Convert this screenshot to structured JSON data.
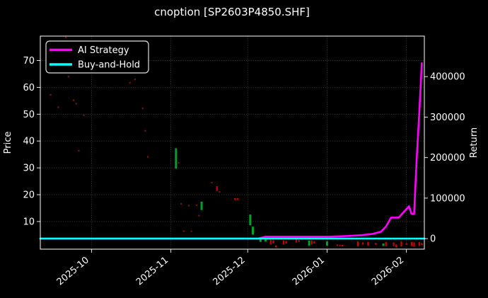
{
  "title": "cnoption [SP2603P4850.SHF]",
  "axes": {
    "left_label": "Price",
    "right_label": "Return"
  },
  "legend": {
    "position": "upper left",
    "items": [
      {
        "label": "AI Strategy",
        "color": "#ff00ff"
      },
      {
        "label": "Buy-and-Hold",
        "color": "#00ffff"
      }
    ]
  },
  "colors": {
    "background": "#000000",
    "frame": "#ffffff",
    "text": "#ffffff",
    "grid": "#4a4a4a",
    "candle_up": "#00a328",
    "candle_down": "#d40000",
    "candle_down_dim": "#7c1010"
  },
  "chart_data": {
    "type": "line",
    "subtype": "line+candlestick",
    "title": "cnoption [SP2603P4850.SHF]",
    "xlabel": "",
    "ylabel_left": "Price",
    "ylabel_right": "Return",
    "grid": true,
    "legend_position": "upper left",
    "x_range": [
      "2025-09-11",
      "2026-02-08"
    ],
    "x_ticks": [
      {
        "label": "2025-10",
        "date": "2025-10-01"
      },
      {
        "label": "2025-11",
        "date": "2025-11-01"
      },
      {
        "label": "2025-12",
        "date": "2025-12-01"
      },
      {
        "label": "2026-01",
        "date": "2026-01-01"
      },
      {
        "label": "2026-02",
        "date": "2026-02-01"
      }
    ],
    "price_ylim": [
      -0.3,
      79.1
    ],
    "price_ticks": [
      10,
      20,
      30,
      40,
      50,
      60,
      70
    ],
    "return_ylim": [
      -26000,
      500000
    ],
    "return_ticks": [
      0,
      100000,
      200000,
      300000,
      400000
    ],
    "series": [
      {
        "name": "AI Strategy",
        "axis": "return",
        "color": "#ff00ff",
        "points": [
          [
            "2025-09-11",
            0
          ],
          [
            "2025-12-05",
            0
          ],
          [
            "2025-12-08",
            5000
          ],
          [
            "2026-01-02",
            5000
          ],
          [
            "2026-01-09",
            6500
          ],
          [
            "2026-01-15",
            9000
          ],
          [
            "2026-01-19",
            12000
          ],
          [
            "2026-01-22",
            17000
          ],
          [
            "2026-01-24",
            30000
          ],
          [
            "2026-01-26",
            52000
          ],
          [
            "2026-01-29",
            52000
          ],
          [
            "2026-02-01",
            73000
          ],
          [
            "2026-02-02",
            80000
          ],
          [
            "2026-02-03",
            61000
          ],
          [
            "2026-02-04",
            61000
          ],
          [
            "2026-02-05",
            195000
          ],
          [
            "2026-02-06",
            310000
          ],
          [
            "2026-02-07",
            433000
          ]
        ]
      },
      {
        "name": "Buy-and-Hold",
        "axis": "return",
        "color": "#00ffff",
        "points": [
          [
            "2025-09-11",
            0
          ],
          [
            "2026-02-08",
            0
          ]
        ]
      }
    ],
    "candles": [
      [
        "2025-09-15",
        56.9,
        57.5,
        "dd"
      ],
      [
        "2025-09-18",
        52.3,
        52.9,
        "dd"
      ],
      [
        "2025-09-21",
        78.3,
        78.9,
        "dd"
      ],
      [
        "2025-09-22",
        63.7,
        64.3,
        "dd"
      ],
      [
        "2025-09-24",
        54.9,
        55.5,
        "dd"
      ],
      [
        "2025-09-25",
        53.6,
        54.2,
        "dd"
      ],
      [
        "2025-09-26",
        36.1,
        36.7,
        "dd"
      ],
      [
        "2025-09-28",
        49.3,
        49.9,
        "dd"
      ],
      [
        "2025-09-29",
        72.5,
        73.1,
        "dd"
      ],
      [
        "2025-10-16",
        61.4,
        62.0,
        "dd"
      ],
      [
        "2025-10-18",
        62.7,
        63.3,
        "dd"
      ],
      [
        "2025-10-21",
        51.9,
        52.5,
        "dd"
      ],
      [
        "2025-10-22",
        43.5,
        44.1,
        "dd"
      ],
      [
        "2025-10-23",
        33.8,
        34.4,
        "dd"
      ],
      [
        "2025-11-03",
        29.7,
        37.3,
        "u"
      ],
      [
        "2025-11-04",
        31.6,
        32.2,
        "dd"
      ],
      [
        "2025-11-05",
        16.3,
        16.9,
        "dd"
      ],
      [
        "2025-11-06",
        6.1,
        6.7,
        "dd"
      ],
      [
        "2025-11-08",
        15.6,
        16.2,
        "dd"
      ],
      [
        "2025-11-09",
        6.1,
        6.6,
        "dd"
      ],
      [
        "2025-11-11",
        15.8,
        16.4,
        "dd"
      ],
      [
        "2025-11-12",
        11.9,
        12.5,
        "dd"
      ],
      [
        "2025-11-13",
        14.3,
        17.4,
        "u"
      ],
      [
        "2025-11-17",
        24.2,
        24.8,
        "dd"
      ],
      [
        "2025-11-19",
        21.4,
        23.2,
        "d"
      ],
      [
        "2025-11-20",
        20.7,
        21.3,
        "dd"
      ],
      [
        "2025-11-26",
        18.0,
        18.7,
        "d"
      ],
      [
        "2025-11-27",
        18.0,
        18.7,
        "d"
      ],
      [
        "2025-12-02",
        8.6,
        12.6,
        "u"
      ],
      [
        "2025-12-03",
        5.1,
        8.1,
        "u"
      ],
      [
        "2025-12-06",
        2.4,
        3.4,
        "u"
      ],
      [
        "2025-12-08",
        2.6,
        3.3,
        "u"
      ],
      [
        "2025-12-10",
        1.5,
        3.2,
        "d"
      ],
      [
        "2025-12-11",
        1.8,
        3.0,
        "d"
      ],
      [
        "2025-12-12",
        0.3,
        1.1,
        "d"
      ],
      [
        "2025-12-15",
        1.5,
        3.0,
        "d"
      ],
      [
        "2025-12-16",
        1.8,
        2.8,
        "d"
      ],
      [
        "2025-12-20",
        2.2,
        3.3,
        "d"
      ],
      [
        "2025-12-21",
        2.4,
        3.1,
        "d"
      ],
      [
        "2025-12-25",
        1.0,
        2.9,
        "u"
      ],
      [
        "2025-12-26",
        1.5,
        3.0,
        "d"
      ],
      [
        "2025-12-27",
        1.8,
        2.7,
        "d"
      ],
      [
        "2026-01-01",
        1.0,
        2.6,
        "u"
      ],
      [
        "2026-01-05",
        0.9,
        1.4,
        "d"
      ],
      [
        "2026-01-06",
        0.9,
        1.3,
        "d"
      ],
      [
        "2026-01-07",
        0.8,
        1.3,
        "d"
      ],
      [
        "2026-01-13",
        0.8,
        2.6,
        "d"
      ],
      [
        "2026-01-15",
        1.5,
        2.2,
        "d"
      ],
      [
        "2026-01-17",
        1.0,
        2.4,
        "d"
      ],
      [
        "2026-01-20",
        1.3,
        2.0,
        "d"
      ],
      [
        "2026-01-23",
        0.9,
        1.8,
        "u"
      ],
      [
        "2026-01-24",
        0.8,
        2.4,
        "d"
      ],
      [
        "2026-01-27",
        0.9,
        2.2,
        "d"
      ],
      [
        "2026-01-28",
        0.3,
        1.5,
        "d"
      ],
      [
        "2026-01-30",
        0.7,
        2.6,
        "d"
      ],
      [
        "2026-02-01",
        1.3,
        1.9,
        "d"
      ],
      [
        "2026-02-03",
        0.9,
        2.4,
        "d"
      ],
      [
        "2026-02-04",
        0.6,
        2.2,
        "d"
      ],
      [
        "2026-02-06",
        1.0,
        2.3,
        "d"
      ],
      [
        "2026-02-07",
        1.2,
        2.0,
        "d"
      ]
    ]
  }
}
